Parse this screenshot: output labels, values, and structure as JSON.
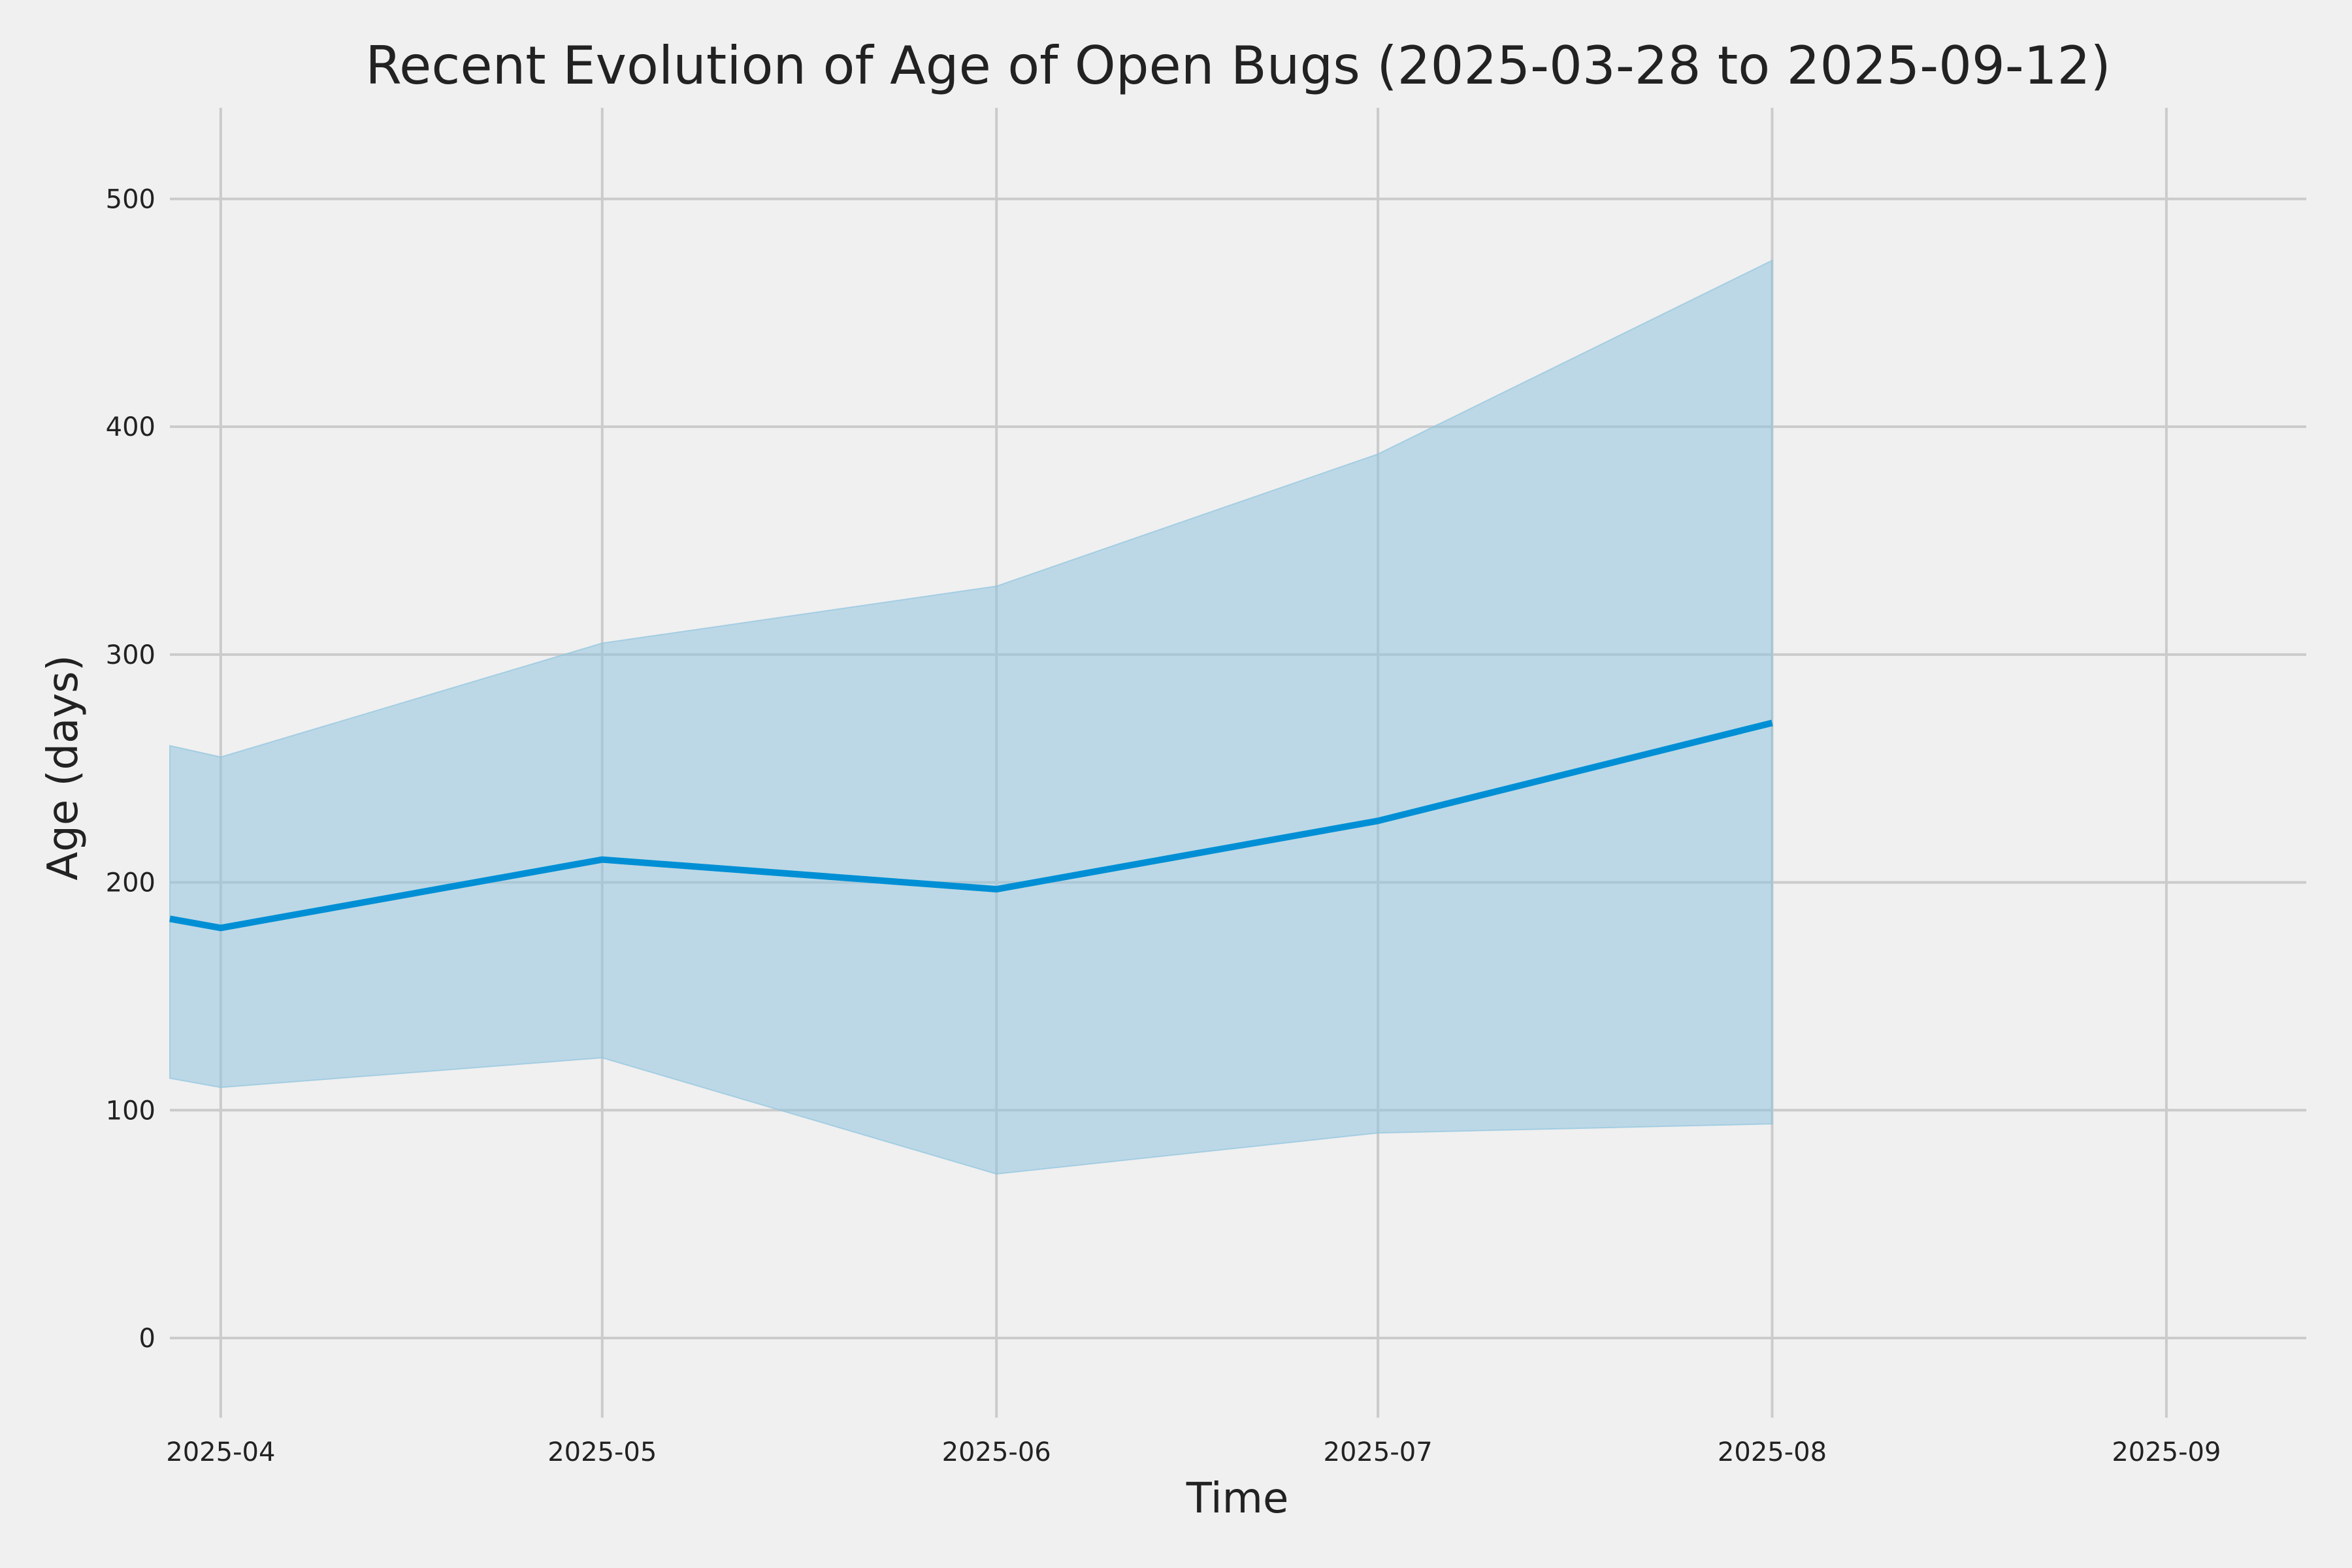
{
  "chart_data": {
    "type": "line",
    "title": "Recent Evolution of Age of Open Bugs (2025-03-28 to 2025-09-12)",
    "xlabel": "Time",
    "ylabel": "Age (days)",
    "xlim": [
      "2025-03-28",
      "2025-09-12"
    ],
    "ylim": [
      -35,
      540
    ],
    "x_ticks": [
      {
        "date": "2025-04-01",
        "label": "2025-04"
      },
      {
        "date": "2025-05-01",
        "label": "2025-05"
      },
      {
        "date": "2025-06-01",
        "label": "2025-06"
      },
      {
        "date": "2025-07-01",
        "label": "2025-07"
      },
      {
        "date": "2025-08-01",
        "label": "2025-08"
      },
      {
        "date": "2025-09-01",
        "label": "2025-09"
      }
    ],
    "y_ticks": [
      0,
      100,
      200,
      300,
      400,
      500
    ],
    "grid": true,
    "legend": "none",
    "colors": {
      "line": "#008fd5",
      "band": "#92c5de",
      "background": "#f0f0f0",
      "grid": "#cbcbcb",
      "text": "#222222"
    },
    "series": [
      {
        "x": [
          "2025-03-28",
          "2025-04-01",
          "2025-05-01",
          "2025-06-01",
          "2025-07-01",
          "2025-08-01"
        ],
        "values": [
          184,
          180,
          210,
          197,
          227,
          270
        ],
        "lower": [
          114,
          110,
          123,
          72,
          90,
          94
        ],
        "upper": [
          260,
          255,
          305,
          330,
          388,
          473
        ]
      }
    ]
  }
}
